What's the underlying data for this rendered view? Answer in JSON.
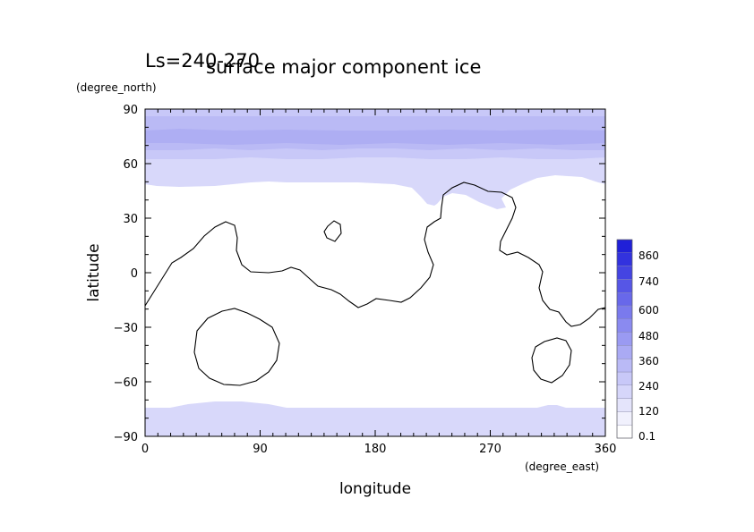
{
  "chart_data": {
    "type": "heatmap",
    "header": "Ls=240-270",
    "title": "surface major component ice",
    "xlabel": "longitude",
    "ylabel": "latitude",
    "xunit": "(degree_east)",
    "yunit": "(degree_north)",
    "xlim": [
      0,
      360
    ],
    "ylim": [
      -90,
      90
    ],
    "xticks": [
      "0",
      "90",
      "180",
      "270",
      "360"
    ],
    "yticks": [
      "90",
      "60",
      "30",
      "0",
      "−30",
      "−60",
      "−90"
    ],
    "colorbar": {
      "labels": [
        "0.1",
        "120",
        "240",
        "360",
        "480",
        "600",
        "740",
        "860"
      ],
      "colors": [
        "#ffffff",
        "#f1f1fd",
        "#e4e4fb",
        "#d6d6fa",
        "#c8c8f8",
        "#babaf6",
        "#aaaaf4",
        "#9a9af2",
        "#8a8af0",
        "#7a7aed",
        "#6868ea",
        "#5656e6",
        "#4444e2",
        "#3232de",
        "#2020d8"
      ]
    },
    "ice_bands": {
      "north_ice_zones": [
        {
          "min_ice": 0.1,
          "color": "#d8d8fa"
        },
        {
          "min_ice": 120,
          "color": "#c8c8f8"
        },
        {
          "min_ice": 240,
          "color": "#babaf5"
        },
        {
          "min_ice": 360,
          "color": "#aeaef3"
        }
      ],
      "south_ice_zones": [
        {
          "min_ice": 0.1,
          "color": "#d8d8fa"
        }
      ]
    }
  }
}
